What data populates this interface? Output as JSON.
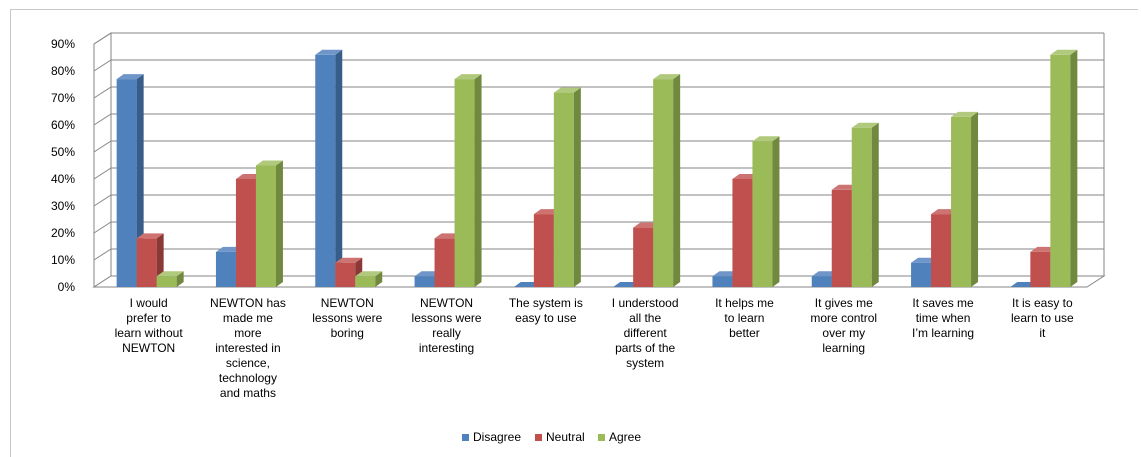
{
  "chart_data": {
    "type": "bar",
    "categories": [
      [
        "I would",
        "prefer to",
        "learn without",
        "NEWTON"
      ],
      [
        "NEWTON has",
        "made me",
        "more",
        "interested in",
        "science,",
        "technology",
        "and maths"
      ],
      [
        "NEWTON",
        "lessons were",
        "boring"
      ],
      [
        "NEWTON",
        "lessons were",
        "really",
        "interesting"
      ],
      [
        "The system is",
        "easy to use"
      ],
      [
        "I understood",
        "all the",
        "different",
        "parts of the",
        "system"
      ],
      [
        "It helps me",
        "to learn",
        "better"
      ],
      [
        "It gives me",
        "more control",
        "over my",
        "learning"
      ],
      [
        "It saves me",
        "time when",
        "I’m learning"
      ],
      [
        "It is easy to",
        "learn to use",
        "it"
      ]
    ],
    "series": [
      {
        "name": "Disagree",
        "color": "#4f81bd",
        "side": "#385d8a",
        "top": "#6f95c9",
        "values": [
          77,
          13,
          86,
          4,
          0,
          0,
          4,
          4,
          9,
          0
        ]
      },
      {
        "name": "Neutral",
        "color": "#c0504d",
        "side": "#8c3836",
        "top": "#cd7371",
        "values": [
          18,
          40,
          9,
          18,
          27,
          22,
          40,
          36,
          27,
          13
        ]
      },
      {
        "name": "Agree",
        "color": "#9bbb59",
        "side": "#71893f",
        "top": "#b0c97c",
        "values": [
          4,
          45,
          4,
          77,
          72,
          77,
          54,
          59,
          63,
          86
        ]
      }
    ],
    "yticks": [
      "0%",
      "10%",
      "20%",
      "30%",
      "40%",
      "50%",
      "60%",
      "70%",
      "80%",
      "90%"
    ],
    "ylim": [
      0,
      90
    ],
    "grid": true,
    "legend": "bottom"
  }
}
